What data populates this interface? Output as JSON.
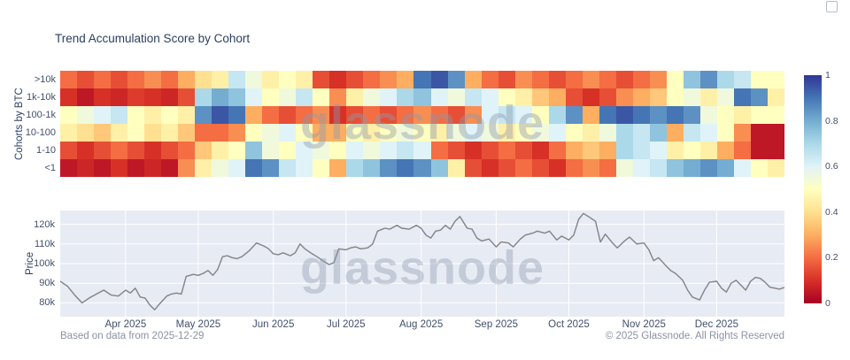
{
  "header": {
    "title": "Trend Accumulation Score by Cohort"
  },
  "watermark": {
    "text": "glassnode"
  },
  "footer": {
    "source": "Based on data from 2025-12-29",
    "copyright": "© 2025 Glassnode. All Rights Reserved"
  },
  "icons": {
    "export": "▢"
  },
  "colors": {
    "title": "#2a3f5f",
    "tick": "#42506b",
    "muted": "#8b92a5",
    "plot_bg": "#e7ebf4",
    "grid": "#ffffff",
    "price_line": "#818386"
  },
  "chart_data": [
    {
      "type": "heatmap",
      "title": "Trend Accumulation Score by Cohort",
      "ylabel": "Cohorts by BTC",
      "rows": [
        ">10k",
        "1k-10k",
        "100-1k",
        "10-100",
        "1-10",
        "<1"
      ],
      "zmin": 0,
      "zmax": 1,
      "colorscale": "RdYlBu (0=dark red, 0.5=pale yellow, 1=dark blue)",
      "colorbar_ticks": [
        "1",
        "0.8",
        "0.6",
        "0.4",
        "0.2",
        "0"
      ],
      "x_resolution": "weekly, Mar 2025 – Dec 29 2025 (43 columns, values estimated from colors)",
      "series": [
        {
          "name": ">10k",
          "values": [
            0.2,
            0.15,
            0.2,
            0.15,
            0.2,
            0.25,
            0.2,
            0.3,
            0.4,
            0.45,
            0.65,
            0.55,
            0.45,
            0.5,
            0.45,
            0.15,
            0.1,
            0.15,
            0.2,
            0.25,
            0.3,
            0.9,
            0.95,
            0.85,
            0.3,
            0.2,
            0.15,
            0.25,
            0.2,
            0.15,
            0.2,
            0.25,
            0.2,
            0.15,
            0.2,
            0.25,
            0.5,
            0.75,
            0.85,
            0.7,
            0.65,
            0.5,
            0.5
          ]
        },
        {
          "name": "1k-10k",
          "values": [
            0.1,
            0.05,
            0.1,
            0.08,
            0.12,
            0.1,
            0.08,
            0.15,
            0.7,
            0.8,
            0.75,
            0.6,
            0.5,
            0.55,
            0.65,
            0.5,
            0.25,
            0.45,
            0.55,
            0.6,
            0.7,
            0.75,
            0.6,
            0.55,
            0.65,
            0.6,
            0.5,
            0.45,
            0.35,
            0.3,
            0.15,
            0.1,
            0.15,
            0.25,
            0.3,
            0.35,
            0.5,
            0.55,
            0.45,
            0.55,
            0.9,
            0.85,
            0.45
          ]
        },
        {
          "name": "100-1k",
          "values": [
            0.5,
            0.55,
            0.6,
            0.65,
            0.5,
            0.45,
            0.5,
            0.45,
            0.85,
            0.95,
            0.9,
            0.3,
            0.2,
            0.15,
            0.2,
            0.25,
            0.1,
            0.15,
            0.2,
            0.15,
            0.2,
            0.25,
            0.2,
            0.15,
            0.25,
            0.6,
            0.65,
            0.6,
            0.5,
            0.7,
            0.85,
            0.3,
            0.9,
            0.95,
            0.9,
            0.85,
            0.9,
            0.85,
            0.55,
            0.5,
            0.45,
            0.5,
            0.5
          ]
        },
        {
          "name": "10-100",
          "values": [
            0.45,
            0.4,
            0.35,
            0.45,
            0.5,
            0.4,
            0.45,
            0.35,
            0.2,
            0.2,
            0.25,
            0.5,
            0.55,
            0.6,
            0.5,
            0.3,
            0.3,
            0.5,
            0.45,
            0.5,
            0.55,
            0.5,
            0.45,
            0.55,
            0.6,
            0.55,
            0.45,
            0.5,
            0.55,
            0.6,
            0.5,
            0.45,
            0.55,
            0.7,
            0.65,
            0.75,
            0.3,
            0.65,
            0.6,
            0.5,
            0.25,
            0.05,
            0.05
          ]
        },
        {
          "name": "1-10",
          "values": [
            0.15,
            0.1,
            0.15,
            0.2,
            0.15,
            0.1,
            0.15,
            0.2,
            0.35,
            0.45,
            0.5,
            0.75,
            0.55,
            0.5,
            0.6,
            0.55,
            0.5,
            0.6,
            0.55,
            0.6,
            0.65,
            0.6,
            0.2,
            0.15,
            0.1,
            0.15,
            0.2,
            0.15,
            0.1,
            0.2,
            0.3,
            0.35,
            0.3,
            0.7,
            0.65,
            0.6,
            0.45,
            0.5,
            0.45,
            0.3,
            0.2,
            0.05,
            0.05
          ]
        },
        {
          "name": "<1",
          "values": [
            0.05,
            0.08,
            0.05,
            0.1,
            0.05,
            0.08,
            0.05,
            0.25,
            0.45,
            0.55,
            0.6,
            0.9,
            0.85,
            0.65,
            0.6,
            0.5,
            0.3,
            0.7,
            0.75,
            0.85,
            0.9,
            0.85,
            0.75,
            0.45,
            0.15,
            0.1,
            0.15,
            0.2,
            0.15,
            0.1,
            0.2,
            0.25,
            0.2,
            0.55,
            0.6,
            0.65,
            0.75,
            0.8,
            0.85,
            0.8,
            0.6,
            0.5,
            0.45
          ]
        }
      ]
    },
    {
      "type": "line",
      "ylabel": "Price",
      "yticks": [
        "80k",
        "90k",
        "100k",
        "110k",
        "120k"
      ],
      "ytick_values_k": [
        80,
        90,
        100,
        110,
        120
      ],
      "ylim_k": [
        73,
        127
      ],
      "xtick_labels": [
        "Apr 2025",
        "May 2025",
        "Jun 2025",
        "Jul 2025",
        "Aug 2025",
        "Sep 2025",
        "Oct 2025",
        "Nov 2025",
        "Dec 2025"
      ],
      "xtick_days": [
        27,
        57,
        88,
        118,
        149,
        180,
        210,
        241,
        271
      ],
      "total_days": 299,
      "x_days": [
        0,
        3,
        6,
        9,
        12,
        15,
        18,
        21,
        24,
        27,
        29,
        31,
        33,
        35,
        37,
        39,
        41,
        44,
        46,
        48,
        50,
        52,
        55,
        57,
        59,
        61,
        63,
        65,
        67,
        69,
        71,
        73,
        75,
        78,
        81,
        84,
        86,
        88,
        90,
        92,
        95,
        97,
        99,
        101,
        104,
        106,
        109,
        111,
        113,
        115,
        118,
        120,
        122,
        124,
        127,
        129,
        131,
        134,
        136,
        139,
        141,
        144,
        147,
        149,
        151,
        153,
        155,
        157,
        159,
        161,
        163,
        165,
        168,
        170,
        172,
        174,
        177,
        180,
        182,
        185,
        187,
        190,
        192,
        195,
        197,
        200,
        202,
        205,
        207,
        210,
        212,
        214,
        216,
        218,
        221,
        223,
        225,
        228,
        230,
        233,
        235,
        238,
        241,
        243,
        245,
        247,
        250,
        252,
        254,
        257,
        259,
        261,
        264,
        266,
        268,
        271,
        273,
        275,
        277,
        279,
        281,
        283,
        285,
        287,
        289,
        291,
        293,
        295,
        297,
        298,
        299
      ],
      "values_k": [
        91.0,
        88.5,
        84.0,
        80.0,
        82.5,
        84.5,
        86.5,
        84.0,
        83.5,
        86.5,
        85.0,
        87.5,
        83.0,
        82.5,
        79.0,
        76.5,
        79.5,
        83.5,
        84.5,
        85.0,
        84.5,
        93.5,
        94.5,
        94.0,
        95.0,
        96.5,
        94.0,
        97.0,
        103.5,
        104.0,
        103.0,
        102.5,
        103.5,
        106.5,
        110.5,
        109.0,
        107.5,
        105.0,
        104.5,
        105.5,
        104.0,
        105.5,
        110.0,
        107.5,
        105.0,
        103.5,
        101.0,
        99.5,
        100.5,
        107.5,
        107.0,
        108.0,
        108.5,
        107.5,
        108.0,
        110.0,
        116.5,
        118.0,
        117.5,
        119.5,
        118.0,
        117.5,
        119.5,
        118.0,
        114.5,
        113.0,
        116.5,
        117.0,
        119.5,
        117.5,
        121.5,
        124.0,
        118.0,
        117.5,
        113.0,
        111.5,
        112.5,
        108.5,
        111.0,
        110.5,
        108.5,
        112.5,
        114.5,
        115.5,
        116.5,
        115.5,
        116.5,
        112.0,
        114.0,
        112.0,
        114.5,
        122.5,
        125.5,
        124.0,
        121.5,
        111.0,
        115.0,
        110.5,
        108.0,
        111.5,
        113.5,
        110.0,
        110.5,
        107.0,
        101.5,
        103.0,
        99.0,
        96.5,
        95.0,
        91.5,
        86.5,
        83.0,
        81.5,
        86.5,
        90.5,
        91.0,
        87.5,
        85.5,
        90.0,
        91.5,
        89.0,
        86.5,
        91.0,
        93.0,
        92.5,
        90.5,
        88.0,
        87.5,
        87.0,
        87.5,
        87.8
      ]
    }
  ]
}
